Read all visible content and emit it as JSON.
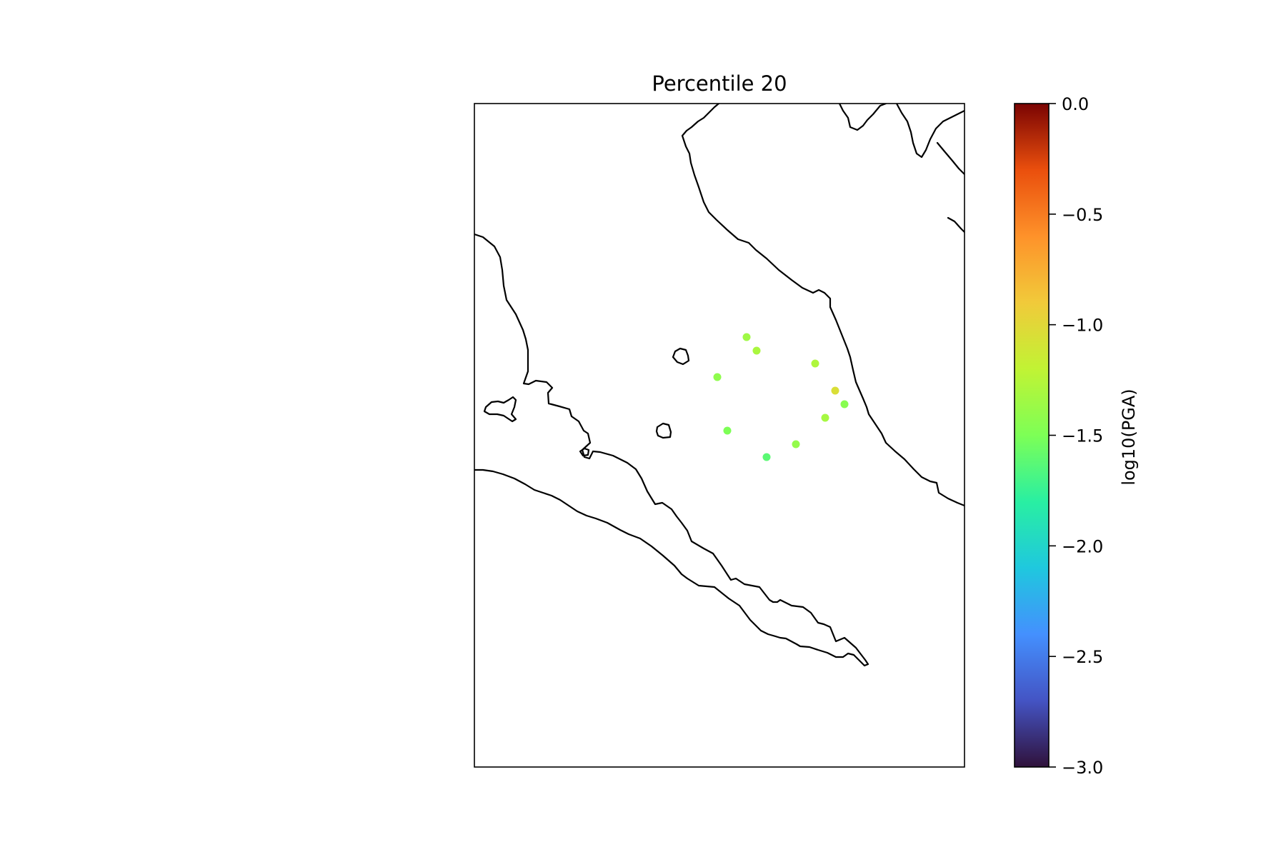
{
  "chart_data": {
    "type": "scatter",
    "title": "Percentile 20",
    "points": [
      {
        "value": -1.35
      },
      {
        "value": -1.3
      },
      {
        "value": -1.42
      },
      {
        "value": -1.28
      },
      {
        "value": -1.05
      },
      {
        "value": -1.45
      },
      {
        "value": -1.32
      },
      {
        "value": -1.5
      },
      {
        "value": -1.4
      },
      {
        "value": -1.62
      }
    ],
    "colorbar": {
      "label": "log10(PGA)",
      "min": -3.0,
      "max": 0.0,
      "ticks": [
        "0.0",
        "−0.5",
        "−1.0",
        "−1.5",
        "−2.0",
        "−2.5",
        "−3.0"
      ],
      "tick_values": [
        0.0,
        -0.5,
        -1.0,
        -1.5,
        -2.0,
        -2.5,
        -3.0
      ],
      "colormap": "turbo"
    },
    "grid": false,
    "colors": {
      "coastline": "#000000",
      "frame": "#000000",
      "background": "#ffffff"
    }
  }
}
